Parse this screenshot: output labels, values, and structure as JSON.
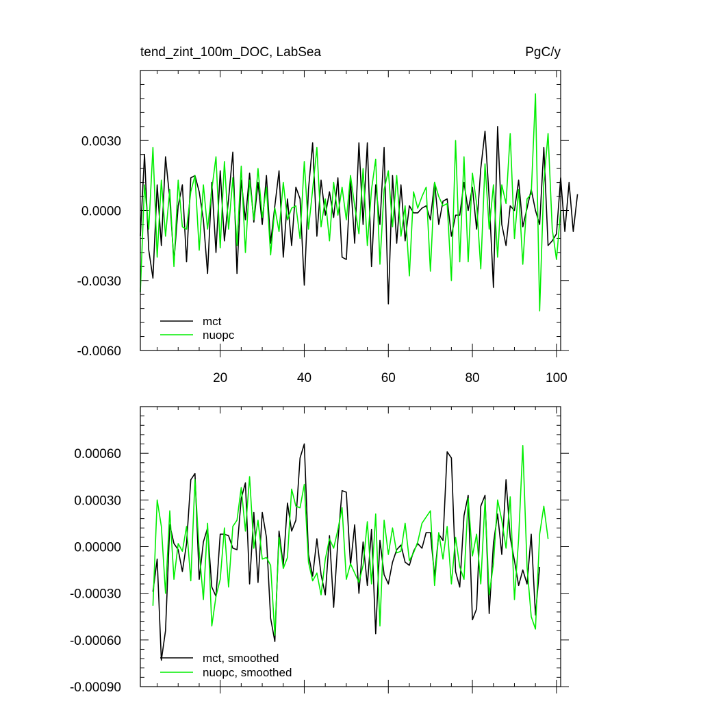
{
  "chart_data": [
    {
      "type": "line",
      "title": "tend_zint_100m_DOC, LabSea",
      "units": "PgC/y",
      "xlim": [
        1,
        101
      ],
      "ylim": [
        -0.006,
        0.006
      ],
      "x_ticks": [
        20,
        40,
        60,
        80,
        100
      ],
      "y_ticks": [
        -0.006,
        -0.003,
        0.0,
        0.003
      ],
      "y_tick_labels": [
        "-0.0060",
        "-0.0030",
        "0.0000",
        "0.0030"
      ],
      "legend_position": "bottom-left",
      "series": [
        {
          "name": "mct",
          "color": "#000000",
          "x_start": 1,
          "values": [
            -0.0011,
            0.0024,
            -0.0017,
            -0.0029,
            0.0011,
            -0.0015,
            0.0023,
            0.0005,
            -0.0022,
            0.0002,
            0.0011,
            -0.0022,
            0.0014,
            0.0015,
            0.0008,
            -0.0004,
            -0.0027,
            0.0012,
            -0.0018,
            0.0017,
            -0.0013,
            0.0005,
            0.0025,
            -0.0027,
            0.0013,
            -0.0004,
            0.0016,
            -0.0005,
            0.0012,
            -0.0006,
            0.0015,
            -0.0014,
            0.0002,
            0.0017,
            -0.002,
            0.0005,
            -0.0015,
            0.001,
            0.0005,
            -0.0032,
            0.0009,
            0.0029,
            -0.0011,
            0.0013,
            -0.0002,
            0.0008,
            -0.0003,
            0.0014,
            -0.002,
            -0.0021,
            0.0013,
            -0.0014,
            0.0029,
            -0.0006,
            0.0029,
            -0.0024,
            0.0011,
            -0.0006,
            0.0027,
            -0.004,
            0.0015,
            -0.0014,
            0.0011,
            -0.0013,
            0.0002,
            -0.0001,
            -0.0001,
            0.0001,
            0.0002,
            -0.0004,
            0.0012,
            -0.0006,
            0.0004,
            0.0005,
            -0.0011,
            -0.0002,
            -0.0002,
            0.0012,
            0.0,
            0.001,
            -0.0008,
            0.0018,
            0.0034,
            0.0005,
            -0.0033,
            0.0036,
            -0.0006,
            -0.0015,
            0.0002,
            0.0,
            0.0013,
            -0.0007,
            0.0001,
            0.0009,
            0.0,
            -0.0006,
            0.0027,
            -0.0015,
            -0.0013,
            -0.001,
            0.0014,
            -0.0009,
            0.0012,
            -0.0009,
            0.0007
          ]
        },
        {
          "name": "nuopc",
          "color": "#00ee00",
          "x_start": 1,
          "values": [
            -0.0035,
            0.0011,
            -0.0008,
            0.0027,
            -0.002,
            0.0013,
            -0.0011,
            0.0009,
            -0.0024,
            0.0013,
            -0.0007,
            -0.0008,
            0.0008,
            0.0015,
            -0.0017,
            0.0011,
            -0.0008,
            0.0009,
            0.0023,
            -0.0016,
            0.0021,
            -0.0008,
            0.0014,
            -0.0015,
            0.0019,
            -0.0018,
            0.0013,
            -0.0004,
            0.0018,
            -0.0003,
            0.001,
            -0.0019,
            0.0001,
            -0.0009,
            0.0012,
            -0.0004,
            0.0001,
            0.0002,
            -0.0012,
            0.0021,
            -0.0008,
            0.0009,
            0.0027,
            -0.0007,
            0.0005,
            -0.0013,
            0.0012,
            -0.0002,
            0.001,
            -0.0004,
            0.0015,
            0.0002,
            -0.001,
            0.0018,
            -0.0015,
            0.0009,
            0.0022,
            -0.0023,
            0.0009,
            0.0017,
            -0.0007,
            0.0015,
            -0.0011,
            0.0002,
            -0.0028,
            0.0008,
            0.0001,
            0.0006,
            0.001,
            -0.0026,
            0.0012,
            0.0006,
            0.0002,
            0.0003,
            -0.003,
            0.003,
            -0.0022,
            0.0023,
            -0.0022,
            0.0016,
            0.0003,
            -0.0025,
            0.002,
            -0.0008,
            0.0011,
            -0.002,
            0.0011,
            0.0003,
            0.0033,
            -0.0012,
            0.0009,
            -0.0023,
            0.0005,
            0.0007,
            0.005,
            -0.0043,
            0.0012,
            0.0033,
            -0.0008,
            -0.0021,
            0.0
          ]
        }
      ]
    },
    {
      "type": "line",
      "title": "",
      "xlim": [
        1,
        101
      ],
      "ylim": [
        -0.0009,
        0.0009
      ],
      "x_ticks": [
        20,
        40,
        60,
        80,
        100
      ],
      "y_ticks": [
        -0.0009,
        -0.0006,
        -0.0003,
        0.0,
        0.0003,
        0.0006
      ],
      "y_tick_labels": [
        "-0.00090",
        "-0.00060",
        "-0.00030",
        "0.00000",
        "0.00030",
        "0.00060"
      ],
      "legend_position": "bottom-left",
      "series": [
        {
          "name": "mct, smoothed",
          "color": "#000000",
          "x_start": 4,
          "values": [
            -0.00029,
            -8e-05,
            -0.00073,
            -0.00054,
            0.00014,
            2e-05,
            -2e-05,
            -0.00016,
            2e-05,
            0.00043,
            0.00047,
            -0.00021,
            3e-05,
            0.00012,
            -0.00026,
            -0.00032,
            8e-05,
            8e-05,
            7e-05,
            -1e-05,
            -2e-05,
            0.00031,
            0.00041,
            -0.00024,
            0.00022,
            -0.00023,
            0.00022,
            6e-05,
            -0.00046,
            -0.00061,
            0.0001,
            -0.00012,
            0.00028,
            0.0001,
            0.00017,
            0.00057,
            0.00066,
            -5e-05,
            -0.00019,
            5e-05,
            -0.00018,
            -0.00031,
            7e-05,
            -0.00039,
            4e-05,
            0.00036,
            0.00035,
            -0.00012,
            0.00014,
            -0.0003,
            3e-05,
            -0.00025,
            0.00011,
            -0.00056,
            4e-05,
            -0.00018,
            -0.00024,
            -0.0001,
            -2e-05,
            1e-05,
            -0.0001,
            -0.00012,
            -3e-05,
            2e-05,
            -1e-05,
            9e-05,
            9e-05,
            -0.00019,
            8e-05,
            4e-05,
            0.00061,
            0.00057,
            -0.00016,
            -0.00026,
            0.0002,
            0.00033,
            -0.00047,
            -0.0004,
            0.00026,
            0.00033,
            -0.00043,
            2e-05,
            0.00021,
            -5e-05,
            0.00043,
            6e-05,
            -9e-05,
            -0.00025,
            -0.00015,
            -0.00024,
            8e-05,
            -0.00044,
            -0.00013
          ]
        },
        {
          "name": "nuopc, smoothed",
          "color": "#00ee00",
          "x_start": 4,
          "values": [
            -0.00038,
            0.0003,
            0.00013,
            -0.0003,
            0.00023,
            -0.00021,
            2e-05,
            -3e-05,
            0.00013,
            -0.00022,
            0.00043,
            -3e-05,
            -0.00034,
            0.00015,
            -0.00051,
            -0.00032,
            -0.00021,
            0.00012,
            -0.00026,
            0.00013,
            0.00017,
            0.00038,
            0.0001,
            0.00045,
            -1e-05,
            0.00017,
            -8e-05,
            -7e-05,
            -0.00012,
            -0.00057,
            6e-05,
            -0.00014,
            -7e-05,
            0.00037,
            0.00026,
            0.00025,
            0.0004,
            -0.0001,
            -0.00022,
            -0.00017,
            -0.00031,
            -8e-05,
            5e-05,
            -1e-05,
            0.00011,
            0.00025,
            -0.00021,
            -0.00011,
            -0.00017,
            -0.00023,
            -0.00012,
            0.00016,
            -0.00024,
            0.00021,
            -0.00051,
            0.00017,
            -5e-05,
            0.00012,
            -4e-05,
            -3e-05,
            0.00015,
            -9e-05,
            -4e-05,
            3e-05,
            0.00015,
            0.00019,
            0.00023,
            -0.00025,
            9e-05,
            -8e-05,
            0.00013,
            -0.00024,
            6e-05,
            -0.00013,
            -0.00021,
            0.00031,
            -6e-05,
            8e-05,
            -0.00024,
            0.0003,
            -0.00031,
            -0.00011,
            0.0003,
            0.00017,
            -1e-05,
            0.00032,
            -0.00034,
            5e-05,
            0.00065,
            -0.00013,
            -0.00045,
            -0.00053,
            8e-05,
            0.00026,
            5e-05
          ]
        }
      ]
    }
  ]
}
